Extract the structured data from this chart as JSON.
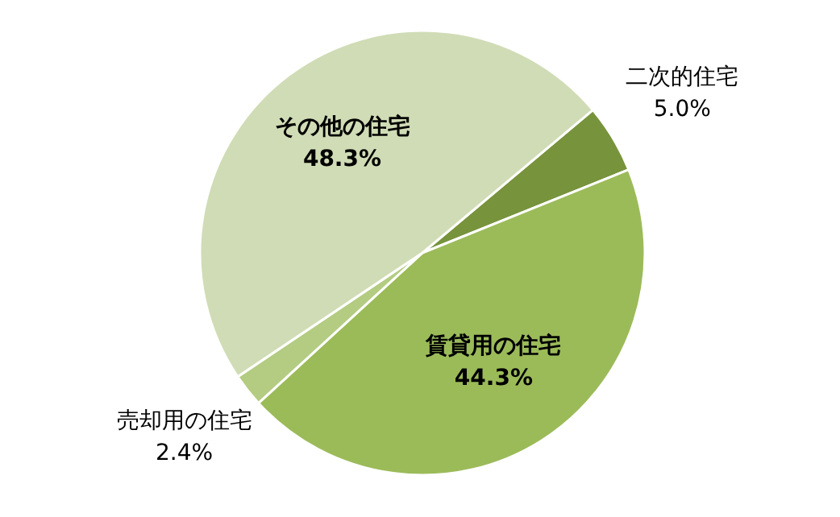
{
  "chart_data": {
    "type": "pie",
    "categories": [
      "二次的住宅",
      "賃貸用の住宅",
      "売却用の住宅",
      "その他の住宅"
    ],
    "values": [
      5.0,
      44.3,
      2.4,
      48.3
    ],
    "colors": [
      "#77933c",
      "#9bbb59",
      "#b3cc82",
      "#d0dcb5"
    ],
    "value_labels": [
      "5.0%",
      "44.3%",
      "2.4%",
      "48.3%"
    ]
  }
}
